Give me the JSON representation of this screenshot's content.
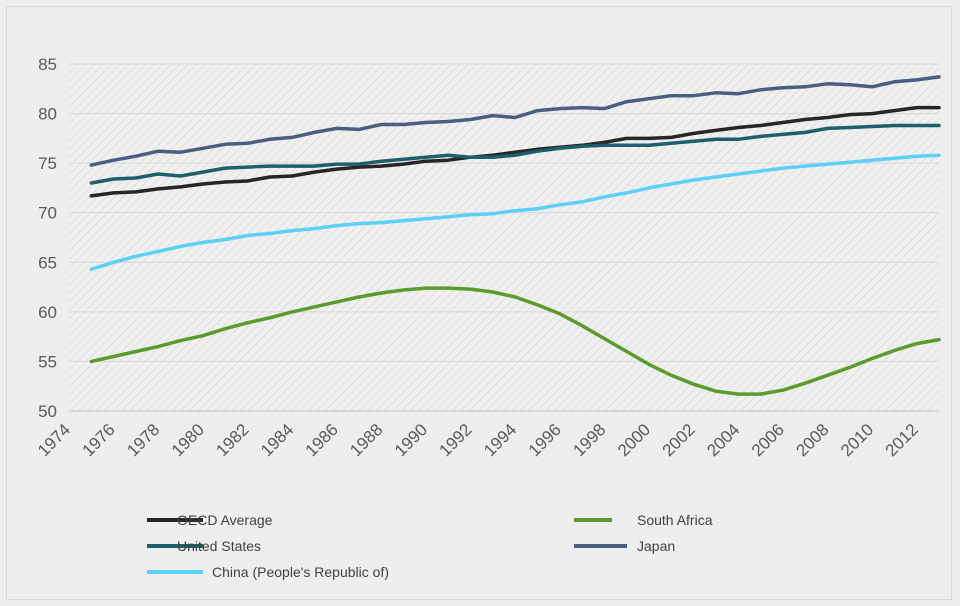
{
  "chart_data": {
    "type": "line",
    "title": "",
    "xlabel": "",
    "ylabel": "",
    "ylim": [
      50,
      85
    ],
    "yticks": [
      50,
      55,
      60,
      65,
      70,
      75,
      80,
      85
    ],
    "x": [
      1975,
      1976,
      1977,
      1978,
      1979,
      1980,
      1981,
      1982,
      1983,
      1984,
      1985,
      1986,
      1987,
      1988,
      1989,
      1990,
      1991,
      1992,
      1993,
      1994,
      1995,
      1996,
      1997,
      1998,
      1999,
      2000,
      2001,
      2002,
      2003,
      2004,
      2005,
      2006,
      2007,
      2008,
      2009,
      2010,
      2011,
      2012,
      2013
    ],
    "xlim": [
      1974,
      2013
    ],
    "xticks": [
      "1974",
      "1976",
      "1978",
      "1980",
      "1982",
      "1984",
      "1986",
      "1988",
      "1990",
      "1992",
      "1994",
      "1996",
      "1998",
      "2000",
      "2002",
      "2004",
      "2006",
      "2008",
      "2010",
      "2012"
    ],
    "grid": "hatched plot area",
    "legend_position": "bottom",
    "series": [
      {
        "name": "OECD Average",
        "color": "#262626",
        "values": [
          71.7,
          72.0,
          72.1,
          72.4,
          72.6,
          72.9,
          73.1,
          73.2,
          73.6,
          73.7,
          74.1,
          74.4,
          74.6,
          74.7,
          74.9,
          75.2,
          75.3,
          75.6,
          75.8,
          76.1,
          76.4,
          76.6,
          76.8,
          77.1,
          77.5,
          77.5,
          77.6,
          78.0,
          78.3,
          78.6,
          78.8,
          79.1,
          79.4,
          79.6,
          79.9,
          80.0,
          80.3,
          80.6,
          80.6
        ]
      },
      {
        "name": "South Africa",
        "color": "#5b9a2d",
        "values": [
          55.0,
          55.5,
          56.0,
          56.5,
          57.1,
          57.6,
          58.3,
          58.9,
          59.4,
          60.0,
          60.5,
          61.0,
          61.5,
          61.9,
          62.2,
          62.4,
          62.4,
          62.3,
          62.0,
          61.5,
          60.7,
          59.8,
          58.6,
          57.3,
          56.0,
          54.7,
          53.6,
          52.7,
          52.0,
          51.7,
          51.7,
          52.1,
          52.8,
          53.6,
          54.4,
          55.3,
          56.1,
          56.8,
          57.2
        ]
      },
      {
        "name": "United States",
        "color": "#1f5f6b",
        "values": [
          73.0,
          73.4,
          73.5,
          73.9,
          73.7,
          74.1,
          74.5,
          74.6,
          74.7,
          74.7,
          74.7,
          74.9,
          74.9,
          75.2,
          75.4,
          75.6,
          75.8,
          75.6,
          75.6,
          75.8,
          76.2,
          76.5,
          76.7,
          76.8,
          76.8,
          76.8,
          77.0,
          77.2,
          77.4,
          77.4,
          77.7,
          77.9,
          78.1,
          78.5,
          78.6,
          78.7,
          78.8,
          78.8,
          78.8
        ]
      },
      {
        "name": "Japan",
        "color": "#4a5f80",
        "values": [
          74.8,
          75.3,
          75.7,
          76.2,
          76.1,
          76.5,
          76.9,
          77.0,
          77.4,
          77.6,
          78.1,
          78.5,
          78.4,
          78.9,
          78.9,
          79.1,
          79.2,
          79.4,
          79.8,
          79.6,
          80.3,
          80.5,
          80.6,
          80.5,
          81.2,
          81.5,
          81.8,
          81.8,
          82.1,
          82.0,
          82.4,
          82.6,
          82.7,
          83.0,
          82.9,
          82.7,
          83.2,
          83.4,
          83.7
        ]
      },
      {
        "name": "China (People's Republic of)",
        "color": "#5ed0f5",
        "values": [
          64.3,
          65.0,
          65.6,
          66.1,
          66.6,
          67.0,
          67.3,
          67.7,
          67.9,
          68.2,
          68.4,
          68.7,
          68.9,
          69.0,
          69.2,
          69.4,
          69.6,
          69.8,
          69.9,
          70.2,
          70.4,
          70.8,
          71.1,
          71.6,
          72.0,
          72.5,
          72.9,
          73.3,
          73.6,
          73.9,
          74.2,
          74.5,
          74.7,
          74.9,
          75.1,
          75.3,
          75.5,
          75.7,
          75.8
        ]
      }
    ]
  }
}
